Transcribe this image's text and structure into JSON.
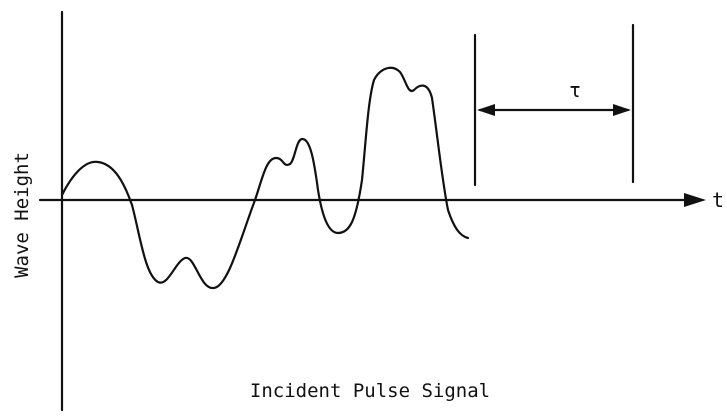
{
  "labels": {
    "y_axis": "Wave Height",
    "x_axis": "t",
    "interval": "τ",
    "caption": "Incident Pulse Signal"
  }
}
